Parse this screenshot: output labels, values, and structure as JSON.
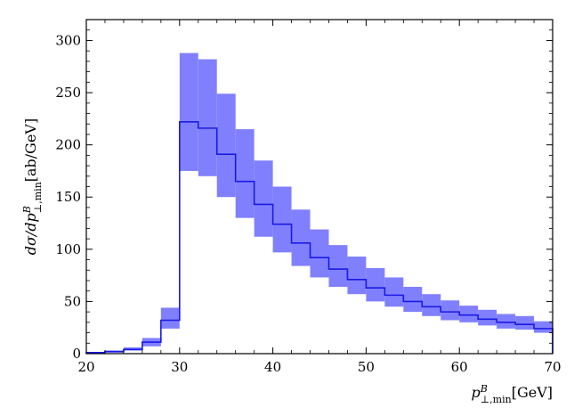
{
  "chart_data": {
    "type": "histogram-band",
    "xlabel": "p⊥,min^B[GeV]",
    "ylabel": "dσ/dp⊥,min^B[ab/GeV]",
    "xlim": [
      20,
      70
    ],
    "ylim": [
      0,
      320
    ],
    "x_ticks": [
      20,
      30,
      40,
      50,
      60,
      70
    ],
    "y_ticks": [
      0,
      50,
      100,
      150,
      200,
      250,
      300
    ],
    "grid": false,
    "legend": "none",
    "colors": {
      "line": "#1a1ae6",
      "band": "#8080ff"
    },
    "bins": [
      {
        "x0": 20,
        "x1": 22,
        "central": 1,
        "low": 0.5,
        "high": 1.5
      },
      {
        "x0": 22,
        "x1": 24,
        "central": 2,
        "low": 1,
        "high": 3
      },
      {
        "x0": 24,
        "x1": 26,
        "central": 4,
        "low": 3,
        "high": 6
      },
      {
        "x0": 26,
        "x1": 28,
        "central": 11,
        "low": 7,
        "high": 15
      },
      {
        "x0": 28,
        "x1": 30,
        "central": 32,
        "low": 24,
        "high": 44
      },
      {
        "x0": 30,
        "x1": 32,
        "central": 222,
        "low": 175,
        "high": 288
      },
      {
        "x0": 32,
        "x1": 34,
        "central": 216,
        "low": 170,
        "high": 282
      },
      {
        "x0": 34,
        "x1": 36,
        "central": 191,
        "low": 150,
        "high": 249
      },
      {
        "x0": 36,
        "x1": 38,
        "central": 165,
        "low": 130,
        "high": 215
      },
      {
        "x0": 38,
        "x1": 40,
        "central": 143,
        "low": 112,
        "high": 185
      },
      {
        "x0": 40,
        "x1": 42,
        "central": 124,
        "low": 97,
        "high": 160
      },
      {
        "x0": 42,
        "x1": 44,
        "central": 106,
        "low": 84,
        "high": 138
      },
      {
        "x0": 44,
        "x1": 46,
        "central": 92,
        "low": 73,
        "high": 119
      },
      {
        "x0": 46,
        "x1": 48,
        "central": 81,
        "low": 64,
        "high": 104
      },
      {
        "x0": 48,
        "x1": 50,
        "central": 71,
        "low": 57,
        "high": 93
      },
      {
        "x0": 50,
        "x1": 52,
        "central": 63,
        "low": 50,
        "high": 82
      },
      {
        "x0": 52,
        "x1": 54,
        "central": 56,
        "low": 45,
        "high": 73
      },
      {
        "x0": 54,
        "x1": 56,
        "central": 50,
        "low": 40,
        "high": 64
      },
      {
        "x0": 56,
        "x1": 58,
        "central": 45,
        "low": 36,
        "high": 57
      },
      {
        "x0": 58,
        "x1": 60,
        "central": 40,
        "low": 32,
        "high": 51
      },
      {
        "x0": 60,
        "x1": 62,
        "central": 37,
        "low": 30,
        "high": 46
      },
      {
        "x0": 62,
        "x1": 64,
        "central": 33,
        "low": 27,
        "high": 42
      },
      {
        "x0": 64,
        "x1": 66,
        "central": 30,
        "low": 24,
        "high": 38
      },
      {
        "x0": 66,
        "x1": 68,
        "central": 28,
        "low": 23,
        "high": 36
      },
      {
        "x0": 68,
        "x1": 70,
        "central": 24,
        "low": 20,
        "high": 31
      }
    ]
  }
}
